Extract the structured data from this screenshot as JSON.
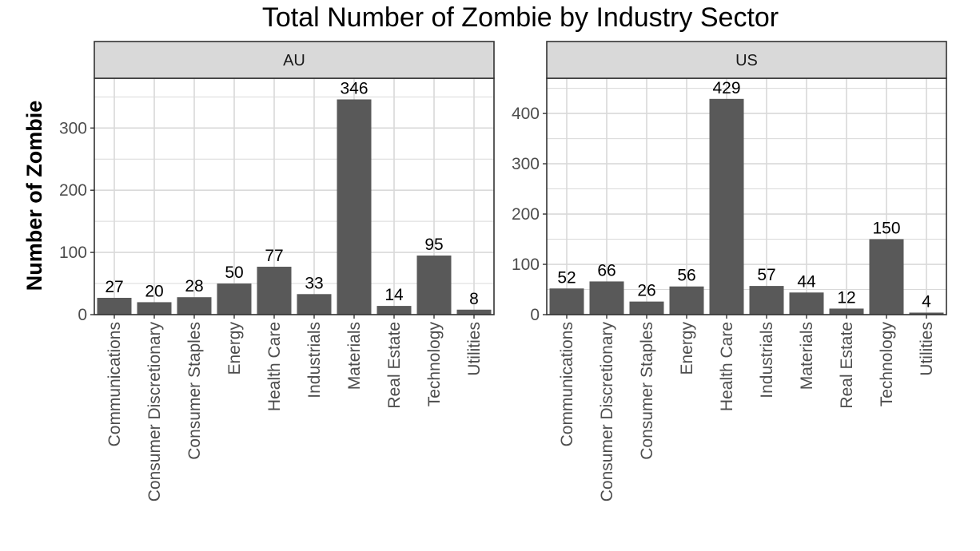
{
  "chart_data": {
    "type": "bar",
    "title": "Total Number of Zombie by Industry Sector",
    "ylabel": "Number of Zombie",
    "xlabel": "",
    "grid": true,
    "bar_color": "#595959",
    "strip_color": "#d9d9d9",
    "gridline_color": "#d9d9d9",
    "categories": [
      "Communications",
      "Consumer Discretionary",
      "Consumer Staples",
      "Energy",
      "Health Care",
      "Industrials",
      "Materials",
      "Real Estate",
      "Technology",
      "Utilities"
    ],
    "facets": [
      {
        "label": "AU",
        "values": [
          27,
          20,
          28,
          50,
          77,
          33,
          346,
          14,
          95,
          8
        ],
        "yticks": [
          0,
          100,
          200,
          300
        ],
        "ylim": [
          0,
          380
        ]
      },
      {
        "label": "US",
        "values": [
          52,
          66,
          26,
          56,
          429,
          57,
          44,
          12,
          150,
          4
        ],
        "yticks": [
          0,
          100,
          200,
          300,
          400
        ],
        "ylim": [
          0,
          470
        ]
      }
    ]
  }
}
